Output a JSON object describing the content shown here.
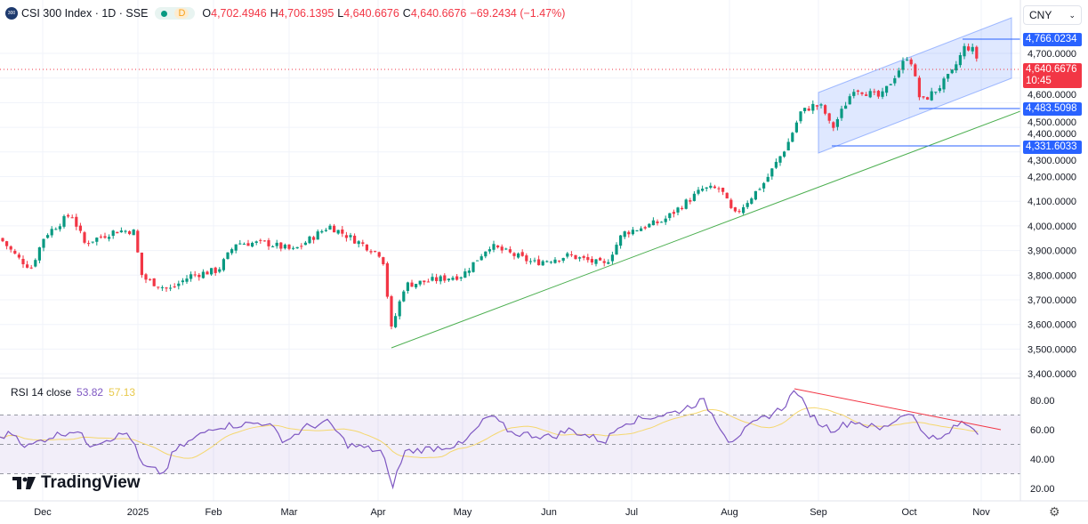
{
  "legend": {
    "logo_text": "300",
    "symbol": "CSI 300 Index · 1D · SSE",
    "interval_badge": "D",
    "open_label": "O",
    "open": "4,702.4946",
    "high_label": "H",
    "high": "4,706.1395",
    "low_label": "L",
    "low": "4,640.6676",
    "close_label": "C",
    "close": "4,640.6676",
    "change": "−69.2434 (−1.47%)"
  },
  "currency": "CNY",
  "price_axis": {
    "ticks": [
      "4,700.0000",
      "4,600.0000",
      "4,500.0000",
      "4,400.0000",
      "4,300.0000",
      "4,200.0000",
      "4,100.0000",
      "4,000.0000",
      "3,900.0000",
      "3,800.0000",
      "3,700.0000",
      "3,600.0000",
      "3,500.0000",
      "3,400.0000"
    ],
    "tick_values": [
      4700,
      4600,
      4500,
      4400,
      4300,
      4200,
      4100,
      4000,
      3900,
      3800,
      3700,
      3600,
      3500,
      3400
    ],
    "tags": [
      {
        "value": 4766.0234,
        "label": "4,766.0234"
      },
      {
        "value": 4483.5098,
        "label": "4,483.5098"
      },
      {
        "value": 4331.6033,
        "label": "4,331.6033"
      }
    ],
    "last_price": {
      "value": 4640.6676,
      "label": "4,640.6676",
      "countdown": "10:45"
    }
  },
  "rsi": {
    "title": "RSI 14 close",
    "value": "53.82",
    "ma_value": "57.13",
    "ticks": [
      "80.00",
      "60.00",
      "40.00",
      "20.00"
    ],
    "tick_values": [
      80,
      60,
      40,
      20
    ]
  },
  "time_axis": [
    "Dec",
    "2025",
    "Feb",
    "Mar",
    "Apr",
    "May",
    "Jun",
    "Jul",
    "Aug",
    "Sep",
    "Oct",
    "Nov"
  ],
  "branding": "TradingView",
  "colors": {
    "up": "#089981",
    "down": "#f23645",
    "trend": "#4caf50",
    "channel": "#2962ff",
    "rsi": "#7e57c2",
    "rsi_ma": "#f5d76e"
  },
  "price_path": [
    [
      0,
      3950
    ],
    [
      20,
      3870
    ],
    [
      35,
      3830
    ],
    [
      50,
      3960
    ],
    [
      80,
      4050
    ],
    [
      95,
      3930
    ],
    [
      130,
      3980
    ],
    [
      150,
      3980
    ],
    [
      160,
      3790
    ],
    [
      190,
      3740
    ],
    [
      215,
      3800
    ],
    [
      245,
      3820
    ],
    [
      265,
      3930
    ],
    [
      300,
      3930
    ],
    [
      330,
      3900
    ],
    [
      370,
      4000
    ],
    [
      395,
      3950
    ],
    [
      430,
      3880
    ],
    [
      440,
      3580
    ],
    [
      455,
      3760
    ],
    [
      520,
      3800
    ],
    [
      550,
      3920
    ],
    [
      600,
      3850
    ],
    [
      640,
      3880
    ],
    [
      680,
      3840
    ],
    [
      700,
      3970
    ],
    [
      745,
      4020
    ],
    [
      790,
      4150
    ],
    [
      810,
      4150
    ],
    [
      825,
      4040
    ],
    [
      860,
      4180
    ],
    [
      885,
      4330
    ],
    [
      900,
      4460
    ],
    [
      915,
      4490
    ],
    [
      925,
      4480
    ],
    [
      935,
      4390
    ],
    [
      960,
      4560
    ],
    [
      990,
      4520
    ],
    [
      1022,
      4700
    ],
    [
      1035,
      4500
    ],
    [
      1055,
      4560
    ],
    [
      1070,
      4620
    ],
    [
      1085,
      4730
    ],
    [
      1095,
      4710
    ],
    [
      1102,
      4640
    ]
  ],
  "rsi_path": [
    [
      0,
      55
    ],
    [
      15,
      58
    ],
    [
      30,
      48
    ],
    [
      55,
      55
    ],
    [
      85,
      60
    ],
    [
      100,
      50
    ],
    [
      145,
      58
    ],
    [
      160,
      35
    ],
    [
      185,
      30
    ],
    [
      195,
      45
    ],
    [
      240,
      62
    ],
    [
      300,
      65
    ],
    [
      320,
      52
    ],
    [
      345,
      62
    ],
    [
      370,
      65
    ],
    [
      390,
      50
    ],
    [
      430,
      45
    ],
    [
      440,
      20
    ],
    [
      455,
      45
    ],
    [
      520,
      50
    ],
    [
      550,
      70
    ],
    [
      575,
      58
    ],
    [
      620,
      55
    ],
    [
      640,
      60
    ],
    [
      680,
      52
    ],
    [
      700,
      65
    ],
    [
      760,
      72
    ],
    [
      790,
      80
    ],
    [
      810,
      62
    ],
    [
      820,
      52
    ],
    [
      850,
      65
    ],
    [
      880,
      75
    ],
    [
      895,
      88
    ],
    [
      905,
      75
    ],
    [
      920,
      65
    ],
    [
      935,
      60
    ],
    [
      960,
      66
    ],
    [
      990,
      60
    ],
    [
      1022,
      73
    ],
    [
      1035,
      60
    ],
    [
      1055,
      52
    ],
    [
      1080,
      65
    ],
    [
      1095,
      62
    ],
    [
      1102,
      54
    ]
  ]
}
